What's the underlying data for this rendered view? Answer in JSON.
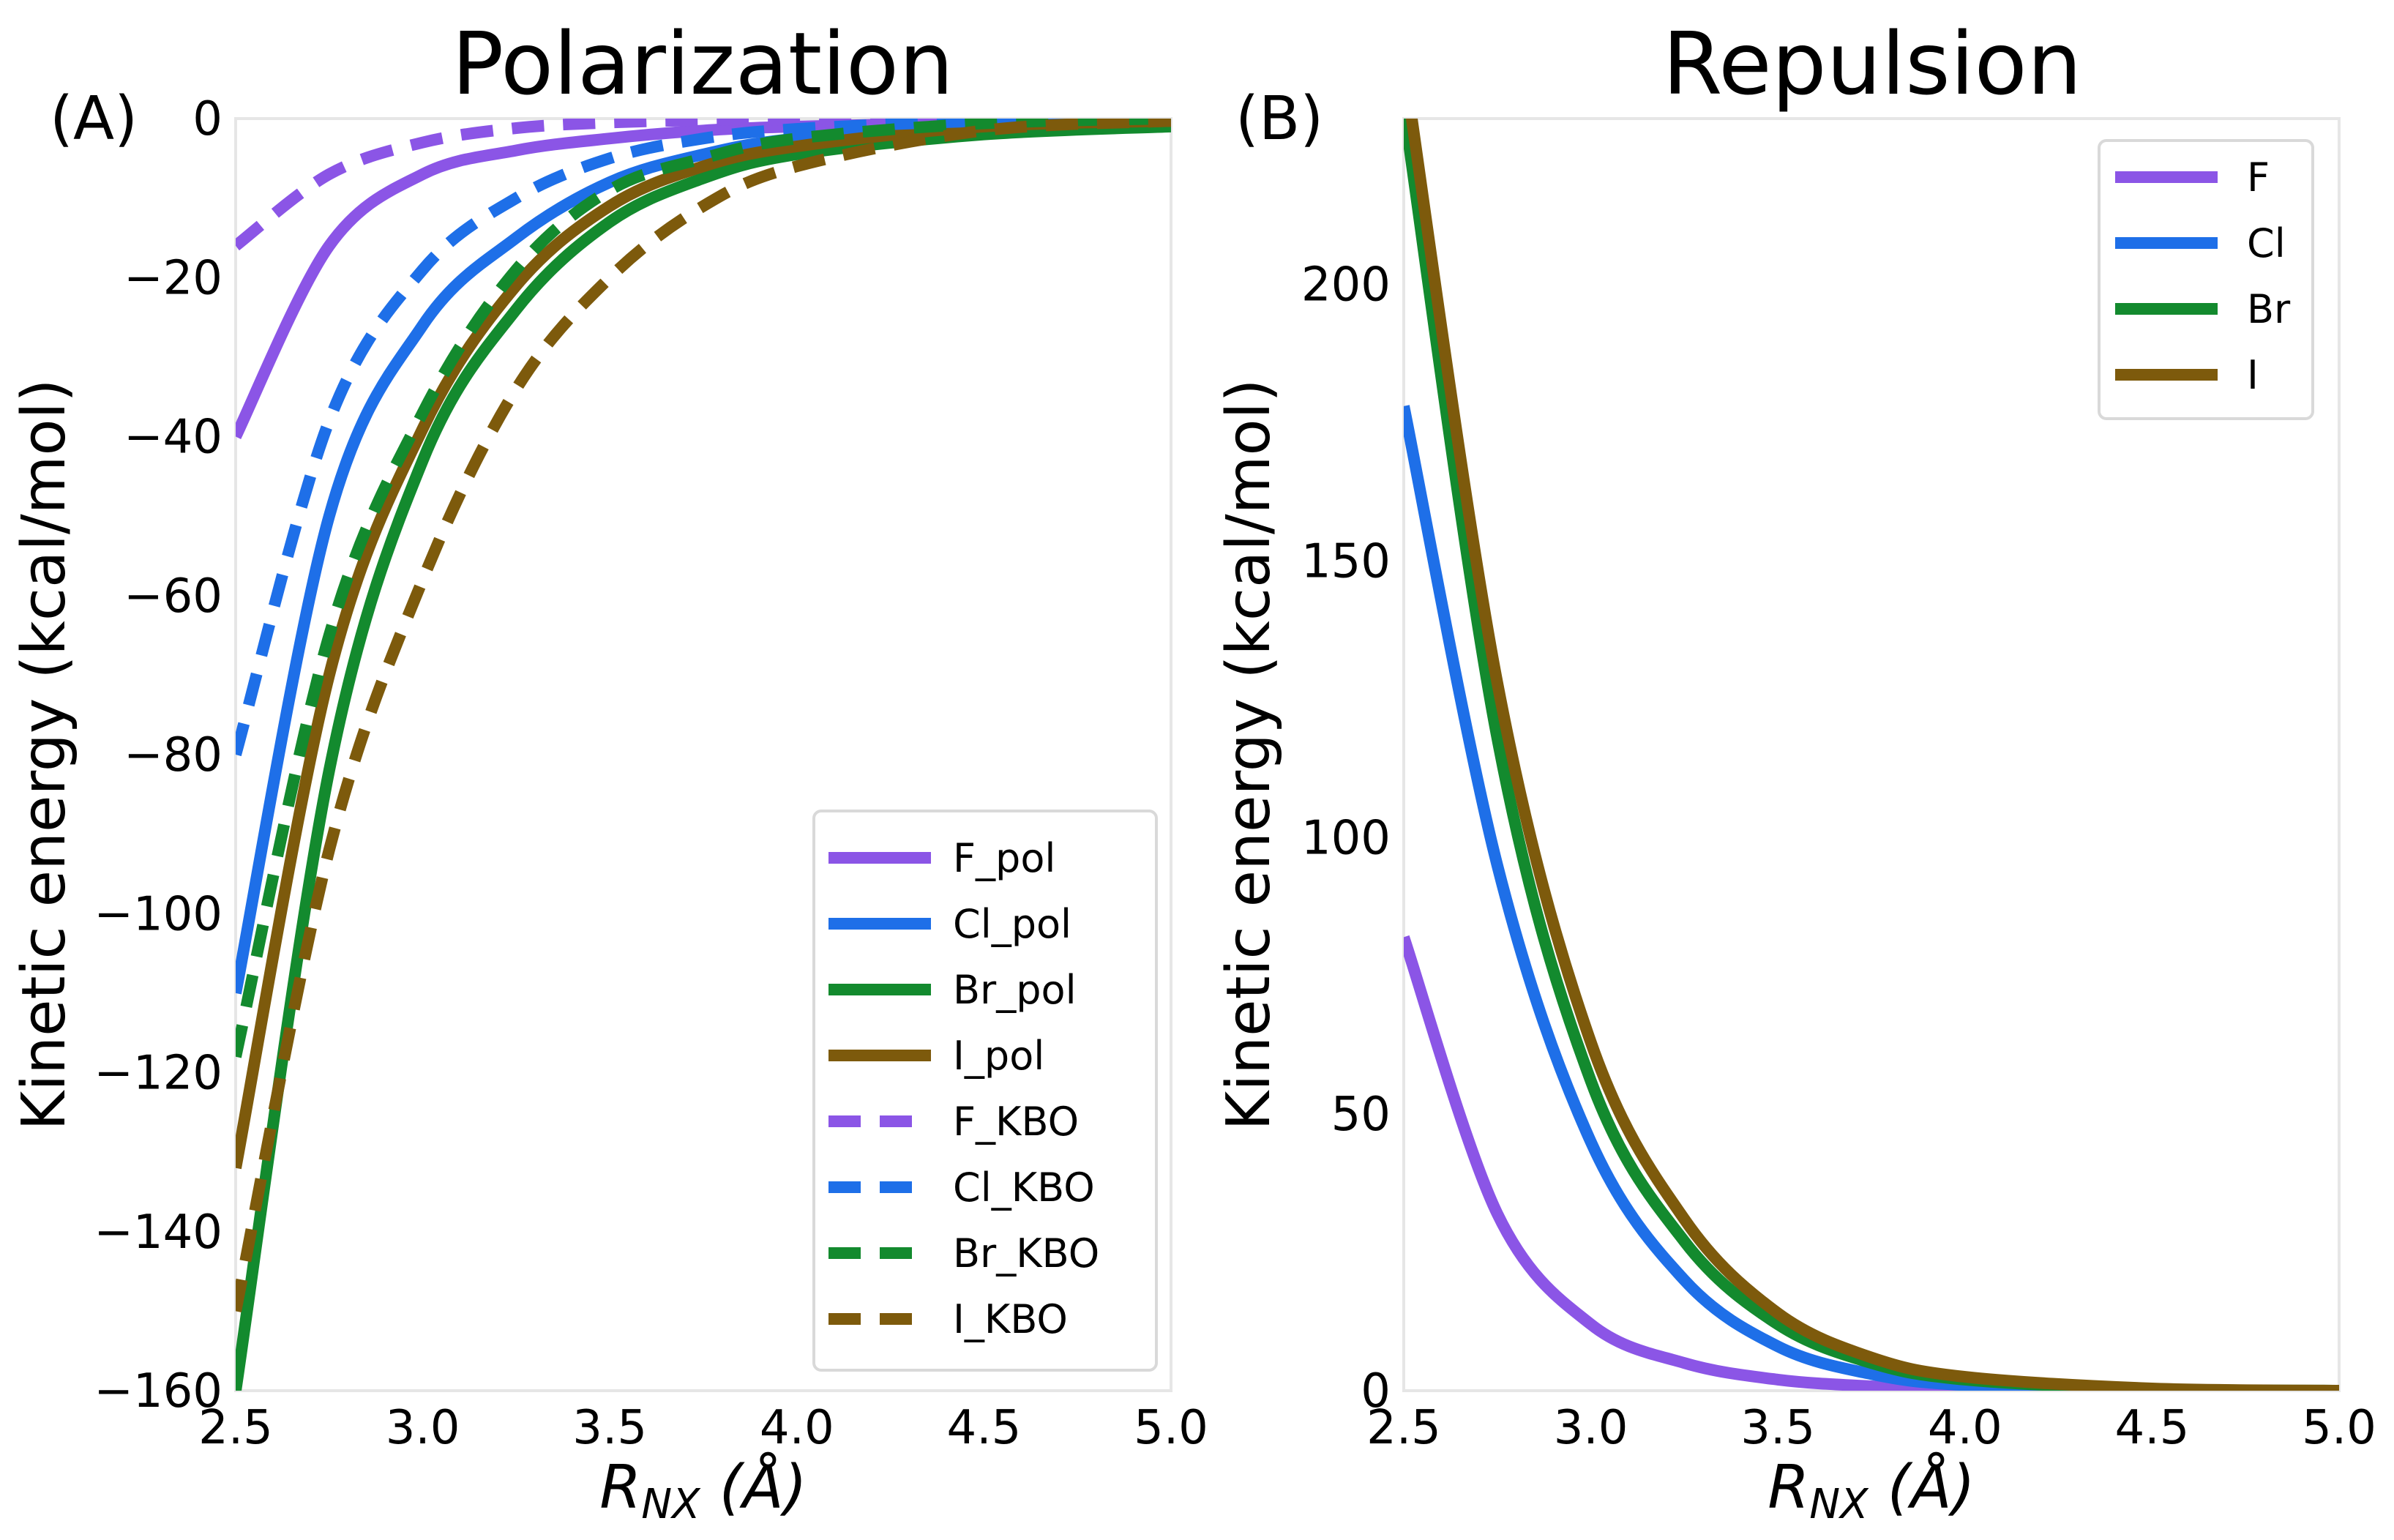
{
  "chart_data": [
    {
      "panel_label": "(A)",
      "title": "Polarization",
      "type": "line",
      "xlabel_main": "R",
      "xlabel_sub": "NX",
      "xlabel_unit": " (Å)",
      "ylabel": "Kinetic energy (kcal/mol)",
      "xlim": [
        2.5,
        5.0
      ],
      "ylim": [
        -160,
        0
      ],
      "xticks": [
        2.5,
        3.0,
        3.5,
        4.0,
        4.5,
        5.0
      ],
      "xtick_labels": [
        "2.5",
        "3.0",
        "3.5",
        "4.0",
        "4.5",
        "5.0"
      ],
      "yticks": [
        0,
        -20,
        -40,
        -60,
        -80,
        -100,
        -120,
        -140,
        -160
      ],
      "ytick_labels": [
        "0",
        "−20",
        "−40",
        "−60",
        "−80",
        "−100",
        "−120",
        "−140",
        "−160"
      ],
      "grid": false,
      "legend_position": "bottom-right",
      "series": [
        {
          "name": "F_pol",
          "color": "#8b55e6",
          "style": "solid",
          "x": [
            2.5,
            2.75,
            3.0,
            3.25,
            3.5,
            3.75,
            4.0,
            4.5,
            5.0
          ],
          "y": [
            -40,
            -16,
            -7,
            -4,
            -2.5,
            -1.5,
            -1,
            -0.5,
            -0.2
          ]
        },
        {
          "name": "Cl_pol",
          "color": "#1e6fe8",
          "style": "solid",
          "x": [
            2.5,
            2.75,
            3.0,
            3.25,
            3.5,
            3.75,
            4.0,
            4.5,
            5.0
          ],
          "y": [
            -110,
            -50,
            -26,
            -15,
            -8,
            -4.5,
            -2.5,
            -0.7,
            -0.2
          ]
        },
        {
          "name": "Br_pol",
          "color": "#138a2e",
          "style": "solid",
          "x": [
            2.5,
            2.75,
            3.0,
            3.25,
            3.5,
            3.75,
            4.0,
            4.5,
            5.0
          ],
          "y": [
            -160,
            -82,
            -43,
            -24,
            -13,
            -7.5,
            -4.5,
            -2,
            -1
          ]
        },
        {
          "name": "I_pol",
          "color": "#7d5a0c",
          "style": "solid",
          "x": [
            2.5,
            2.75,
            3.0,
            3.25,
            3.5,
            3.75,
            4.0,
            4.5,
            5.0
          ],
          "y": [
            -132,
            -70,
            -39,
            -21,
            -11,
            -6,
            -3.5,
            -1,
            -0.3
          ]
        },
        {
          "name": "F_KBO",
          "color": "#8b55e6",
          "style": "dashed",
          "x": [
            2.5,
            2.75,
            3.0,
            3.25,
            3.5,
            3.75,
            4.0,
            4.5,
            5.0
          ],
          "y": [
            -16,
            -7,
            -3,
            -1.2,
            -0.5,
            -0.2,
            -0.1,
            0,
            0
          ]
        },
        {
          "name": "Cl_KBO",
          "color": "#1e6fe8",
          "style": "dashed",
          "x": [
            2.5,
            2.75,
            3.0,
            3.25,
            3.5,
            3.75,
            4.0,
            4.5,
            5.0
          ],
          "y": [
            -80,
            -38,
            -19,
            -10,
            -5,
            -2.5,
            -1.3,
            -0.3,
            0
          ]
        },
        {
          "name": "Br_KBO",
          "color": "#138a2e",
          "style": "dashed",
          "x": [
            2.5,
            2.75,
            3.0,
            3.25,
            3.5,
            3.75,
            4.0,
            4.5,
            5.0
          ],
          "y": [
            -118,
            -65,
            -37,
            -19,
            -9,
            -5,
            -2.5,
            -0.6,
            0
          ]
        },
        {
          "name": "I_KBO",
          "color": "#7d5a0c",
          "style": "dashed",
          "x": [
            2.5,
            2.75,
            3.0,
            3.25,
            3.5,
            3.75,
            4.0,
            4.5,
            5.0
          ],
          "y": [
            -150,
            -92,
            -58,
            -34,
            -20,
            -11,
            -6,
            -1.5,
            -0.3
          ]
        }
      ]
    },
    {
      "panel_label": "(B)",
      "title": "Repulsion",
      "type": "line",
      "xlabel_main": "R",
      "xlabel_sub": "NX",
      "xlabel_unit": " (Å)",
      "ylabel": "Kinetic energy (kcal/mol)",
      "xlim": [
        2.5,
        5.0
      ],
      "ylim": [
        0,
        230
      ],
      "xticks": [
        2.5,
        3.0,
        3.5,
        4.0,
        4.5,
        5.0
      ],
      "xtick_labels": [
        "2.5",
        "3.0",
        "3.5",
        "4.0",
        "4.5",
        "5.0"
      ],
      "yticks": [
        0,
        50,
        100,
        150,
        200
      ],
      "ytick_labels": [
        "0",
        "50",
        "100",
        "150",
        "200"
      ],
      "grid": false,
      "legend_position": "top-right",
      "series": [
        {
          "name": "F",
          "color": "#8b55e6",
          "style": "solid",
          "x": [
            2.5,
            2.75,
            3.0,
            3.25,
            3.5,
            3.75,
            4.0,
            4.5,
            5.0
          ],
          "y": [
            82,
            32,
            12,
            5,
            2,
            0.8,
            0.3,
            0,
            0
          ]
        },
        {
          "name": "Cl",
          "color": "#1e6fe8",
          "style": "solid",
          "x": [
            2.5,
            2.75,
            3.0,
            3.25,
            3.5,
            3.75,
            4.0,
            4.5,
            5.0
          ],
          "y": [
            178,
            95,
            45,
            20,
            8,
            3,
            1,
            0.1,
            0
          ]
        },
        {
          "name": "Br",
          "color": "#138a2e",
          "style": "solid",
          "x": [
            2.5,
            2.75,
            3.0,
            3.25,
            3.5,
            3.75,
            4.0,
            4.5,
            5.0
          ],
          "y": [
            232,
            118,
            56,
            27,
            12,
            5,
            2,
            0.3,
            0
          ]
        },
        {
          "name": "I",
          "color": "#7d5a0c",
          "style": "solid",
          "x": [
            2.5,
            2.75,
            3.0,
            3.25,
            3.5,
            3.75,
            4.0,
            4.5,
            5.0
          ],
          "y": [
            240,
            128,
            63,
            31,
            14,
            6,
            2.5,
            0.4,
            0
          ]
        }
      ]
    }
  ]
}
